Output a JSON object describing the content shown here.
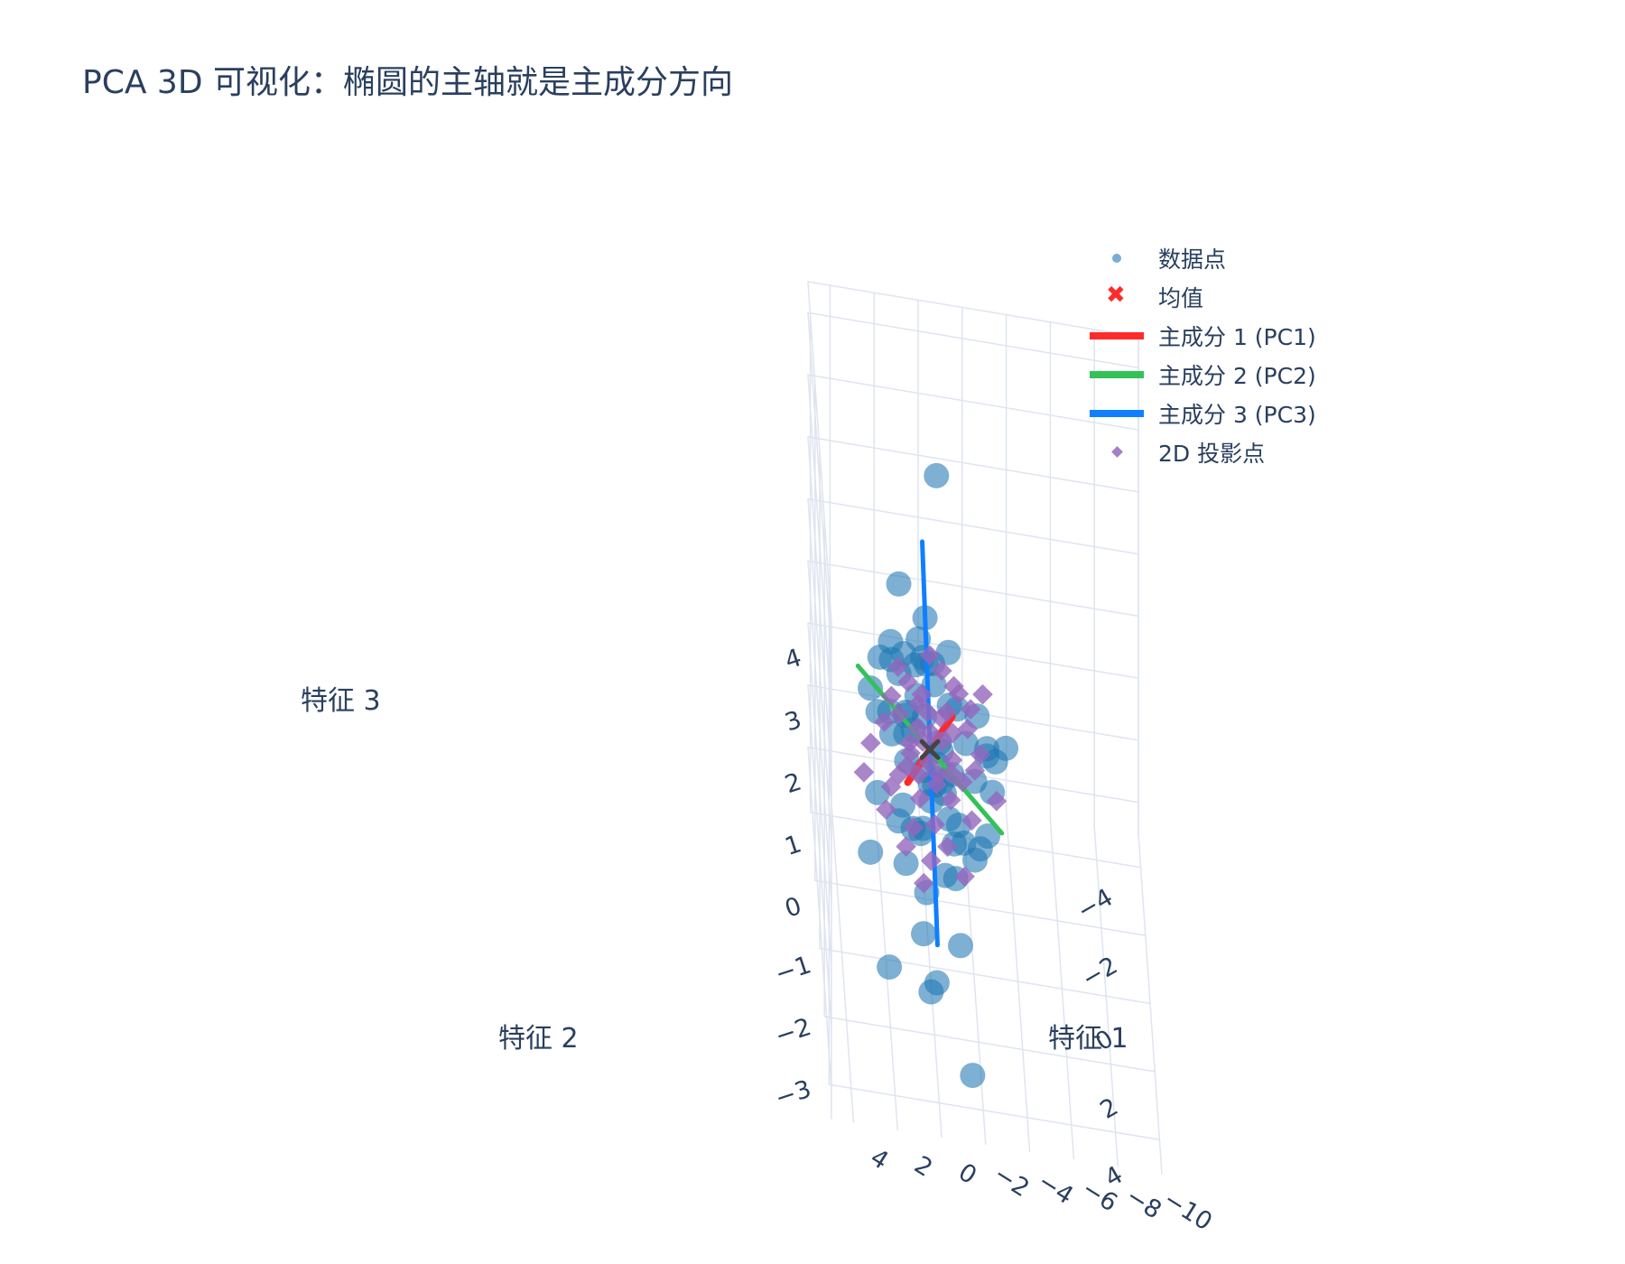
{
  "chart_data": {
    "type": "scatter3d",
    "title": "PCA 3D 可视化：椭圆的主轴就是主成分方向",
    "axes": {
      "x": {
        "label": "特征 1",
        "ticks": [
          "−10",
          "−8",
          "−6",
          "−4",
          "−2",
          "0",
          "2",
          "4"
        ],
        "range": [
          -10,
          5
        ]
      },
      "y": {
        "label": "特征 2",
        "ticks": [
          "−4",
          "−2",
          "0",
          "2",
          "4"
        ],
        "range": [
          -5,
          5
        ]
      },
      "z": {
        "label": "特征 3",
        "ticks": [
          "4",
          "3",
          "2",
          "1",
          "0",
          "−1",
          "−2",
          "−3"
        ],
        "range": [
          -3.5,
          4.5
        ]
      }
    },
    "legend": {
      "placement": "top-right",
      "items": [
        {
          "name": "数据点",
          "symbol": "dot"
        },
        {
          "name": "均值",
          "symbol": "x"
        },
        {
          "name": "主成分 1 (PC1)",
          "symbol": "line",
          "color": "#ff2a2a"
        },
        {
          "name": "主成分 2 (PC2)",
          "symbol": "line",
          "color": "#33c159"
        },
        {
          "name": "主成分 3 (PC3)",
          "symbol": "line",
          "color": "#0f7fff"
        },
        {
          "name": "2D 投影点",
          "symbol": "diamond"
        }
      ]
    },
    "colors": {
      "data_points": "#1f77b4",
      "mean": "#ff2a2a",
      "pc1": "#ff2a2a",
      "pc2": "#33c159",
      "pc3": "#0f7fff",
      "projection": "#9467bd",
      "grid": "#dfe4ef",
      "text": "#2a3f5f"
    },
    "mean": [
      0,
      0,
      0
    ],
    "components": [
      {
        "name": "主成分 1 (PC1)",
        "start": [
          -1.1,
          -0.9,
          0.1
        ],
        "end": [
          1.1,
          0.9,
          -0.1
        ]
      },
      {
        "name": "主成分 2 (PC2)",
        "start": [
          -3,
          2.5,
          0.2
        ],
        "end": [
          3,
          -2.5,
          -0.2
        ]
      },
      {
        "name": "主成分 3 (PC3)",
        "start": [
          0.4,
          0.5,
          3.6
        ],
        "end": [
          -0.4,
          -0.5,
          -3.4
        ]
      }
    ],
    "data_points": [
      [
        -0.5,
        -1.9,
        3.4
      ],
      [
        0.2,
        -0.2,
        2.0
      ],
      [
        -3.0,
        4.2,
        2.5
      ],
      [
        -1.8,
        3.2,
        2.4
      ],
      [
        -2.2,
        3.6,
        2.0
      ],
      [
        -2.4,
        4.1,
        1.7
      ],
      [
        1.2,
        -2.0,
        1.5
      ],
      [
        -0.1,
        0.2,
        1.5
      ],
      [
        0.3,
        -0.3,
        1.3
      ],
      [
        -0.8,
        0.8,
        1.2
      ],
      [
        0.6,
        -0.6,
        1.0
      ],
      [
        -0.2,
        -0.1,
        1.0
      ],
      [
        -1.5,
        1.3,
        0.9
      ],
      [
        -1.8,
        2.2,
        0.8
      ],
      [
        1.3,
        -1.0,
        0.6
      ],
      [
        1.0,
        -1.8,
        0.5
      ],
      [
        0.5,
        -0.8,
        0.4
      ],
      [
        0.2,
        -0.4,
        0.3
      ],
      [
        -0.4,
        0.3,
        0.3
      ],
      [
        -0.9,
        1.0,
        0.2
      ],
      [
        1.5,
        -2.3,
        0.1
      ],
      [
        2.0,
        -2.5,
        0.0
      ],
      [
        0.7,
        -0.5,
        0.0
      ],
      [
        -0.3,
        0.4,
        0.0
      ],
      [
        -2.0,
        2.7,
        0.0
      ],
      [
        -2.4,
        2.1,
        -0.1
      ],
      [
        1.0,
        -0.9,
        -0.3
      ],
      [
        0.3,
        0.1,
        -0.3
      ],
      [
        -0.6,
        0.5,
        -0.4
      ],
      [
        1.6,
        -1.2,
        -0.5
      ],
      [
        0.0,
        0.6,
        -0.5
      ],
      [
        -1.2,
        1.0,
        -0.6
      ],
      [
        0.9,
        -2.0,
        -0.6
      ],
      [
        -0.6,
        -0.4,
        -0.7
      ],
      [
        0.4,
        0.9,
        -0.8
      ],
      [
        1.5,
        0.8,
        -0.8
      ],
      [
        -0.3,
        -0.8,
        -1.0
      ],
      [
        0.8,
        0.4,
        -1.1
      ],
      [
        -1.5,
        0.4,
        -1.2
      ],
      [
        1.2,
        1.1,
        -1.3
      ],
      [
        0.3,
        1.5,
        -1.5
      ],
      [
        -0.6,
        0.9,
        -1.5
      ],
      [
        2.2,
        -1.6,
        -1.7
      ],
      [
        0.5,
        2.0,
        -1.9
      ],
      [
        -1.2,
        1.8,
        -2.1
      ],
      [
        2.6,
        -0.9,
        -2.3
      ],
      [
        0.2,
        2.4,
        -2.6
      ],
      [
        -0.1,
        2.1,
        -2.6
      ],
      [
        2.0,
        1.5,
        -2.8
      ],
      [
        -1.6,
        3.2,
        -3.4
      ],
      [
        -1.0,
        -1.5,
        0.8
      ],
      [
        0.4,
        -1.2,
        1.1
      ],
      [
        1.8,
        -0.2,
        0.4
      ],
      [
        -2.5,
        0.8,
        0.6
      ],
      [
        0.1,
        1.2,
        0.1
      ],
      [
        -0.7,
        1.6,
        -0.2
      ],
      [
        1.1,
        0.3,
        0.7
      ],
      [
        -1.3,
        -0.6,
        0.4
      ],
      [
        0.6,
        1.8,
        -0.4
      ],
      [
        -1.9,
        1.4,
        -0.9
      ],
      [
        2.3,
        -0.5,
        0.2
      ],
      [
        1.4,
        1.6,
        -0.1
      ],
      [
        -0.9,
        2.6,
        -0.6
      ],
      [
        0.9,
        -1.4,
        -1.0
      ],
      [
        -2.8,
        1.7,
        0.9
      ],
      [
        0.0,
        -1.6,
        0.5
      ],
      [
        1.7,
        -0.8,
        1.2
      ],
      [
        -0.4,
        1.1,
        0.6
      ],
      [
        2.5,
        -1.9,
        -0.2
      ],
      [
        -1.1,
        0.1,
        -1.4
      ]
    ],
    "projection_points": [
      [
        -2.6,
        -1.9
      ],
      [
        -0.8,
        -2.4
      ],
      [
        -1.3,
        -2.0
      ],
      [
        -1.5,
        -1.8
      ],
      [
        -2.0,
        -1.4
      ],
      [
        0.4,
        -1.3
      ],
      [
        -0.3,
        -2.8
      ],
      [
        -0.9,
        -1.2
      ],
      [
        0.2,
        -1.6
      ],
      [
        -1.8,
        -0.8
      ],
      [
        0.8,
        -1.9
      ],
      [
        -0.1,
        -0.5
      ],
      [
        1.2,
        -2.3
      ],
      [
        -2.3,
        -0.1
      ],
      [
        -0.6,
        -0.3
      ],
      [
        0.5,
        -0.6
      ],
      [
        -1.0,
        0.2
      ],
      [
        0.9,
        -0.1
      ],
      [
        1.6,
        -1.4
      ],
      [
        -1.4,
        0.8
      ],
      [
        0.1,
        0.4
      ],
      [
        1.1,
        0.6
      ],
      [
        -0.2,
        1.0
      ],
      [
        2.0,
        -0.6
      ],
      [
        -0.8,
        1.4
      ],
      [
        0.6,
        1.5
      ],
      [
        1.5,
        0.9
      ],
      [
        -1.7,
        1.9
      ],
      [
        0.0,
        2.2
      ],
      [
        1.9,
        1.3
      ],
      [
        2.7,
        0.1
      ],
      [
        -0.5,
        2.8
      ],
      [
        1.0,
        2.4
      ],
      [
        2.2,
        2.0
      ],
      [
        -2.9,
        1.2
      ],
      [
        3.1,
        1.0
      ],
      [
        0.3,
        3.3
      ],
      [
        1.4,
        3.0
      ],
      [
        -1.2,
        3.6
      ],
      [
        0.7,
        4.0
      ],
      [
        -0.6,
        -1.0
      ],
      [
        0.3,
        -0.2
      ],
      [
        -1.1,
        -0.6
      ],
      [
        0.9,
        0.2
      ],
      [
        -0.3,
        0.7
      ],
      [
        1.3,
        -0.9
      ],
      [
        -2.0,
        0.4
      ],
      [
        0.0,
        -1.1
      ],
      [
        0.6,
        0.8
      ],
      [
        -0.9,
        0.6
      ]
    ]
  }
}
